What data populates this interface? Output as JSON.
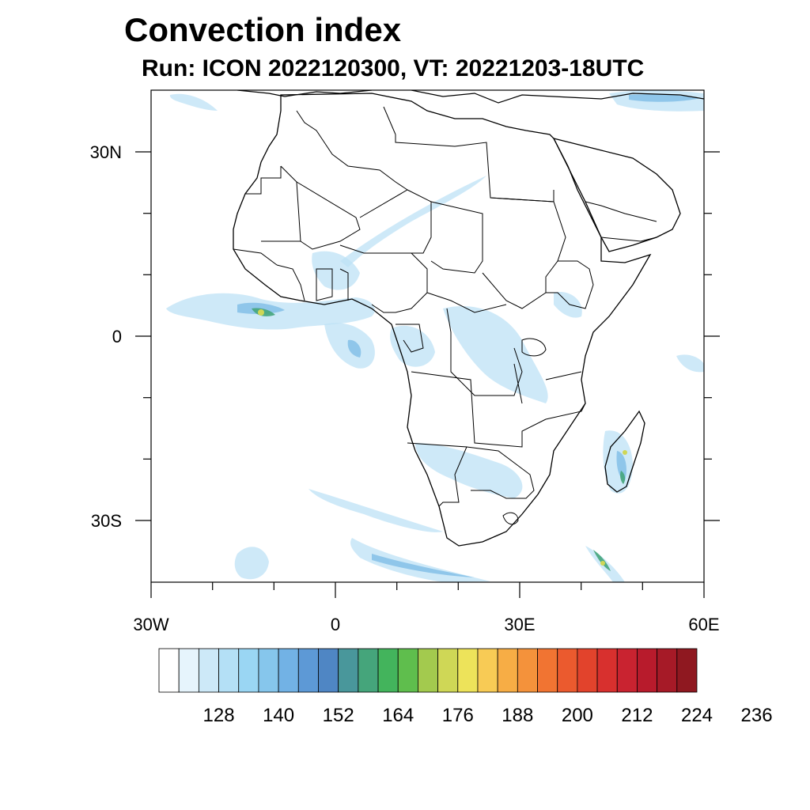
{
  "header": {
    "title": "Convection index",
    "subtitle": "Run: ICON 2022120300,  VT: 20221203-18UTC"
  },
  "axes": {
    "lon_labels": [
      "30W",
      "0",
      "30E",
      "60E"
    ],
    "lat_labels": [
      "30N",
      "0",
      "30S"
    ]
  },
  "colorbar": {
    "labels": [
      "128",
      "140",
      "152",
      "164",
      "176",
      "188",
      "200",
      "212",
      "224",
      "236"
    ],
    "colors": [
      "#ffffff",
      "#e6f4fc",
      "#cde9f8",
      "#b4e0f6",
      "#9ad6f3",
      "#86c6ec",
      "#72b2e5",
      "#5d99d6",
      "#4f86c4",
      "#49979b",
      "#45a57b",
      "#43b45c",
      "#5fbe4d",
      "#a3ca4e",
      "#cfd756",
      "#ede35a",
      "#f8cb55",
      "#f7ad45",
      "#f4923b",
      "#f17432",
      "#eb5a2e",
      "#e2432c",
      "#d8302e",
      "#c92330",
      "#b81b2c",
      "#a61a27",
      "#8f1820"
    ]
  },
  "map": {
    "land_color": "#ffffff",
    "border_color": "#000000",
    "convection_light": "#bde2f6",
    "convection_mid": "#7fbde6",
    "convection_strong": "#45a57b",
    "convection_peak": "#cfd756"
  }
}
